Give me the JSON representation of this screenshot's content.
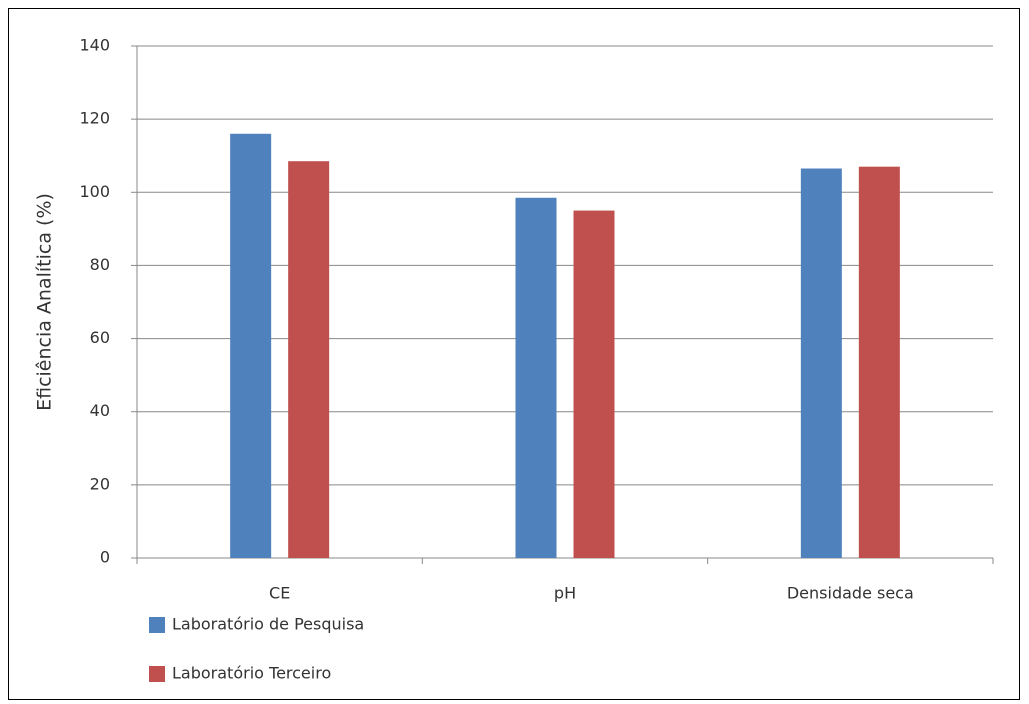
{
  "chart_data": {
    "type": "bar",
    "y_label": "Eficiência Analítica (%)",
    "categories": [
      "CE",
      "pH",
      "Densidade seca"
    ],
    "series": [
      {
        "name": "Laboratório de Pesquisa",
        "color": "#4f81bd",
        "values": [
          116,
          98.5,
          106.5
        ]
      },
      {
        "name": "Laboratório Terceiro",
        "color": "#c0504d",
        "values": [
          108.5,
          95,
          107
        ]
      }
    ],
    "ylim": [
      0,
      140
    ],
    "yticks": [
      0,
      20,
      40,
      60,
      80,
      100,
      120,
      140
    ],
    "grid": true
  }
}
